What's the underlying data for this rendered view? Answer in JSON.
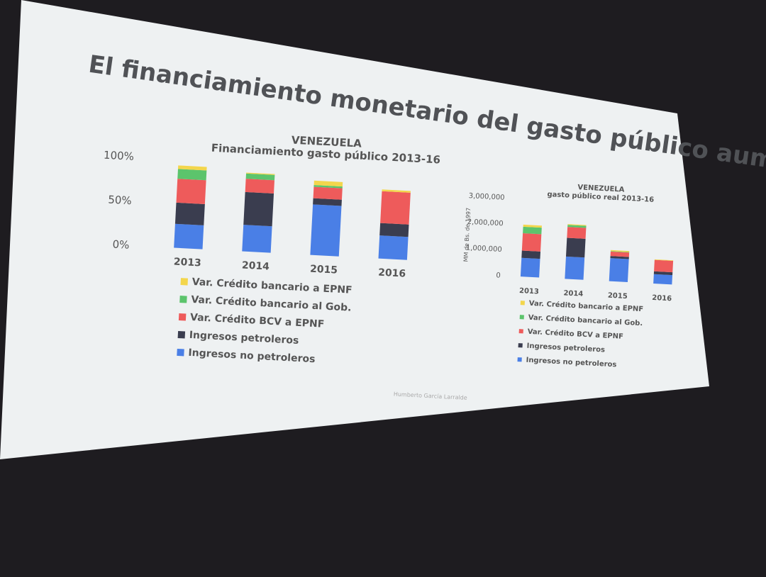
{
  "slide": {
    "title": "El financiamiento monetario del gasto público aumenta",
    "footer": "Humberto García Larralde"
  },
  "chart_data": [
    {
      "type": "stacked_bar",
      "title": "VENEZUELA",
      "subtitle": "Financiamiento gasto público 2013-16",
      "categories": [
        "2013",
        "2014",
        "2015",
        "2016"
      ],
      "series": [
        {
          "name": "Var. Crédito bancario a EPNF",
          "color": "#f3d64c",
          "values": [
            4,
            1,
            5,
            2
          ]
        },
        {
          "name": "Var. Crédito bancario al Gob.",
          "color": "#5cc46c",
          "values": [
            11,
            6,
            2,
            0
          ]
        },
        {
          "name": "Var. Crédito BCV a EPNF",
          "color": "#ee5b5b",
          "values": [
            27,
            15,
            13,
            36
          ]
        },
        {
          "name": "Ingresos petroleros",
          "color": "#3a3d4f",
          "values": [
            24,
            37,
            7,
            14
          ]
        },
        {
          "name": "Ingresos no petroleros",
          "color": "#4a7fe6",
          "values": [
            27,
            30,
            57,
            26
          ]
        }
      ],
      "ylim": [
        0,
        100
      ],
      "yticks": [
        {
          "value": 0,
          "label": "0%"
        },
        {
          "value": 50,
          "label": "50%"
        },
        {
          "value": 100,
          "label": "100%"
        }
      ]
    },
    {
      "type": "stacked_bar",
      "title": "VENEZUELA",
      "subtitle": "gasto público real 2013-16",
      "y_label": "MM de Bs. de 1997",
      "categories": [
        "2013",
        "2014",
        "2015",
        "2016"
      ],
      "series": [
        {
          "name": "Var. Crédito bancario a EPNF",
          "color": "#f3d64c",
          "values": [
            80000,
            30000,
            40000,
            20000
          ]
        },
        {
          "name": "Var. Crédito bancario al Gob.",
          "color": "#5cc46c",
          "values": [
            250000,
            80000,
            20000,
            0
          ]
        },
        {
          "name": "Var. Crédito BCV a EPNF",
          "color": "#ee5b5b",
          "values": [
            670000,
            420000,
            170000,
            440000
          ]
        },
        {
          "name": "Ingresos petroleros",
          "color": "#3a3d4f",
          "values": [
            280000,
            720000,
            80000,
            110000
          ]
        },
        {
          "name": "Ingresos no petroleros",
          "color": "#4a7fe6",
          "values": [
            720000,
            860000,
            890000,
            360000
          ]
        }
      ],
      "ylim": [
        0,
        3000000
      ],
      "yticks": [
        0,
        {
          "value": 1000000,
          "label": "1,000,000"
        },
        {
          "value": 2000000,
          "label": "2,000,000"
        },
        {
          "value": 3000000,
          "label": "3,000,000"
        }
      ]
    }
  ]
}
